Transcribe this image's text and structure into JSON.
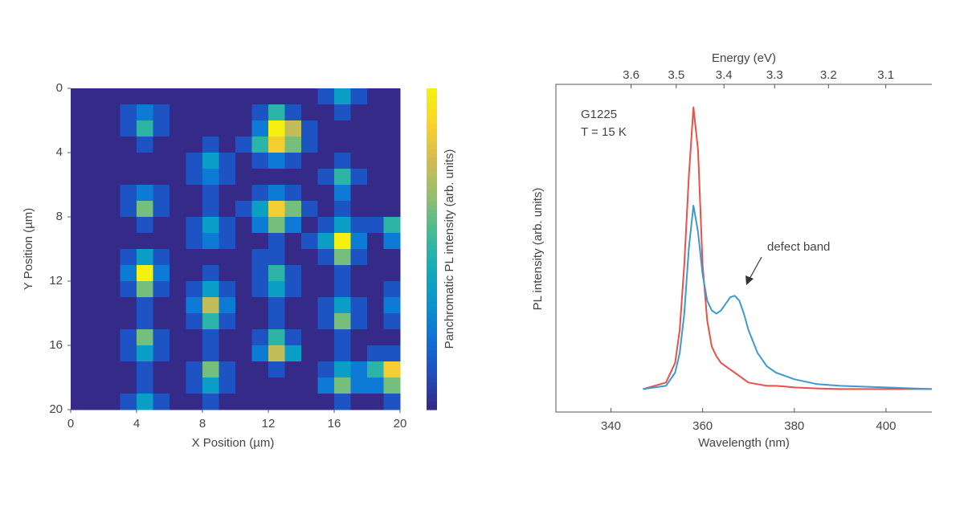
{
  "chart_data": [
    {
      "type": "heatmap",
      "xlabel": "X Position (µm)",
      "ylabel": "Y Position (µm)",
      "colorbar_label": "Panchromatic PL intensity (arb. units)",
      "xlim": [
        0,
        20
      ],
      "ylim": [
        0,
        20
      ],
      "y_inverted": true,
      "xticks": [
        0,
        4,
        8,
        12,
        16,
        20
      ],
      "yticks": [
        0,
        4,
        8,
        12,
        16,
        20
      ],
      "zlim": [
        1,
        9
      ],
      "colorscale": [
        "#352a87",
        "#1f4fbf",
        "#0f72d8",
        "#0796cf",
        "#13adb8",
        "#45bb94",
        "#93bf6d",
        "#d2bb52",
        "#f9d12c",
        "#f5f00f"
      ],
      "z": [
        [
          1,
          1,
          1,
          1,
          1,
          1,
          1,
          1,
          1,
          1,
          1,
          1,
          1,
          1,
          1,
          2,
          4,
          2,
          1,
          1
        ],
        [
          1,
          1,
          1,
          2,
          3,
          2,
          1,
          1,
          1,
          1,
          1,
          2,
          5,
          2,
          1,
          1,
          2,
          1,
          1,
          1
        ],
        [
          1,
          1,
          1,
          2,
          5,
          2,
          1,
          1,
          1,
          1,
          1,
          3,
          9,
          7,
          2,
          1,
          1,
          1,
          1,
          1
        ],
        [
          1,
          1,
          1,
          1,
          2,
          1,
          1,
          1,
          2,
          1,
          2,
          5,
          8,
          6,
          2,
          1,
          1,
          1,
          1,
          1
        ],
        [
          1,
          1,
          1,
          1,
          1,
          1,
          1,
          2,
          4,
          2,
          1,
          2,
          3,
          2,
          1,
          1,
          2,
          1,
          1,
          1
        ],
        [
          1,
          1,
          1,
          1,
          1,
          1,
          1,
          2,
          3,
          2,
          1,
          1,
          1,
          1,
          1,
          2,
          5,
          2,
          1,
          1
        ],
        [
          1,
          1,
          1,
          2,
          3,
          2,
          1,
          1,
          2,
          1,
          1,
          2,
          3,
          2,
          1,
          1,
          3,
          1,
          1,
          1
        ],
        [
          1,
          1,
          1,
          2,
          6,
          2,
          1,
          1,
          2,
          1,
          2,
          4,
          8,
          6,
          2,
          1,
          2,
          1,
          1,
          1
        ],
        [
          1,
          1,
          1,
          1,
          2,
          1,
          1,
          2,
          4,
          2,
          1,
          3,
          6,
          3,
          1,
          2,
          4,
          2,
          2,
          5
        ],
        [
          1,
          1,
          1,
          1,
          1,
          1,
          1,
          2,
          3,
          2,
          1,
          1,
          2,
          1,
          2,
          4,
          9,
          3,
          1,
          3
        ],
        [
          1,
          1,
          1,
          2,
          4,
          2,
          1,
          1,
          1,
          1,
          1,
          2,
          2,
          1,
          1,
          2,
          6,
          2,
          1,
          1
        ],
        [
          1,
          1,
          1,
          3,
          9,
          3,
          1,
          1,
          2,
          1,
          1,
          2,
          5,
          2,
          1,
          1,
          2,
          1,
          1,
          1
        ],
        [
          1,
          1,
          1,
          2,
          6,
          2,
          1,
          2,
          4,
          2,
          1,
          2,
          4,
          2,
          1,
          1,
          2,
          1,
          1,
          2
        ],
        [
          1,
          1,
          1,
          1,
          2,
          1,
          1,
          3,
          7,
          3,
          1,
          1,
          2,
          1,
          1,
          2,
          4,
          2,
          1,
          3
        ],
        [
          1,
          1,
          1,
          1,
          2,
          1,
          1,
          2,
          5,
          2,
          1,
          1,
          2,
          1,
          1,
          2,
          6,
          2,
          1,
          2
        ],
        [
          1,
          1,
          1,
          2,
          6,
          2,
          1,
          1,
          2,
          1,
          1,
          2,
          5,
          2,
          1,
          1,
          2,
          1,
          1,
          1
        ],
        [
          1,
          1,
          1,
          2,
          4,
          2,
          1,
          1,
          2,
          1,
          1,
          3,
          7,
          4,
          1,
          1,
          2,
          1,
          2,
          2
        ],
        [
          1,
          1,
          1,
          1,
          2,
          1,
          1,
          2,
          6,
          2,
          1,
          1,
          2,
          1,
          1,
          2,
          4,
          3,
          5,
          8
        ],
        [
          1,
          1,
          1,
          1,
          2,
          1,
          1,
          2,
          4,
          2,
          1,
          1,
          1,
          1,
          1,
          3,
          6,
          3,
          3,
          6
        ],
        [
          1,
          1,
          1,
          2,
          4,
          2,
          1,
          1,
          2,
          1,
          1,
          1,
          1,
          1,
          1,
          1,
          2,
          1,
          1,
          2
        ]
      ]
    },
    {
      "type": "line",
      "xlabel": "Wavelength (nm)",
      "ylabel": "PL intensity (arb. units)",
      "x2label": "Energy (eV)",
      "annotations": [
        "G1225",
        "T = 15 K",
        "defect band"
      ],
      "xlim": [
        328,
        410
      ],
      "ylim": [
        0,
        1
      ],
      "xticks": [
        340,
        360,
        380,
        400
      ],
      "x2ticks": [
        3.6,
        3.5,
        3.4,
        3.3,
        3.2,
        3.1
      ],
      "x": [
        347,
        352,
        354,
        355,
        356,
        357,
        358,
        359,
        360,
        361,
        362,
        363,
        364,
        365,
        366,
        367,
        368,
        369,
        370,
        372,
        374,
        376,
        378,
        380,
        385,
        390,
        400,
        410
      ],
      "series": [
        {
          "color": "#e8504a",
          "values": [
            0.07,
            0.09,
            0.15,
            0.25,
            0.45,
            0.72,
            0.93,
            0.8,
            0.45,
            0.28,
            0.2,
            0.17,
            0.15,
            0.14,
            0.13,
            0.12,
            0.11,
            0.1,
            0.09,
            0.085,
            0.08,
            0.08,
            0.078,
            0.075,
            0.072,
            0.07,
            0.07,
            0.07
          ]
        },
        {
          "color": "#3d9ad1",
          "values": [
            0.07,
            0.08,
            0.12,
            0.18,
            0.3,
            0.5,
            0.63,
            0.55,
            0.42,
            0.34,
            0.31,
            0.3,
            0.31,
            0.33,
            0.35,
            0.355,
            0.34,
            0.3,
            0.25,
            0.18,
            0.14,
            0.12,
            0.11,
            0.1,
            0.085,
            0.08,
            0.075,
            0.07
          ]
        }
      ]
    }
  ]
}
